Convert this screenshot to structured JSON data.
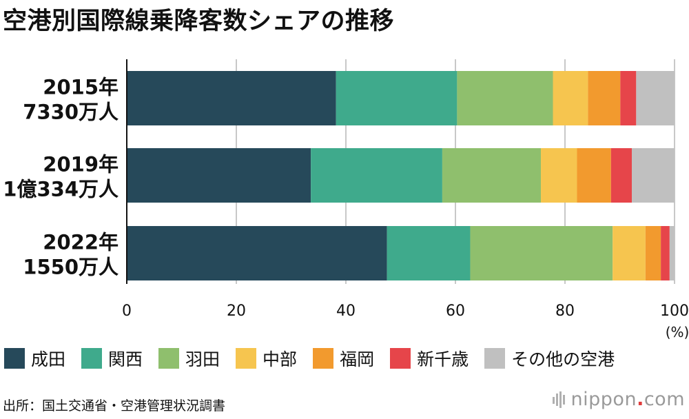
{
  "title": "空港別国際線乗降客数シェアの推移",
  "colors": {
    "成田": "#26495a",
    "関西": "#3faa8c",
    "羽田": "#8fbf6d",
    "中部": "#f6c54f",
    "福岡": "#f29a2e",
    "新千歳": "#e6454a",
    "その他の空港": "#c0c0c0",
    "grid": "#c8c8c8",
    "axis": "#111111"
  },
  "chart_data": {
    "type": "bar",
    "orientation": "horizontal",
    "stacked": true,
    "categories": [
      {
        "year": "2015年",
        "total": "7330万人"
      },
      {
        "year": "2019年",
        "total": "1億334万人"
      },
      {
        "year": "2022年",
        "total": "1550万人"
      }
    ],
    "series": [
      {
        "name": "成田",
        "values": [
          38.2,
          33.6,
          47.5
        ]
      },
      {
        "name": "関西",
        "values": [
          22.1,
          24.0,
          15.2
        ]
      },
      {
        "name": "羽田",
        "values": [
          17.5,
          18.0,
          26.0
        ]
      },
      {
        "name": "中部",
        "values": [
          6.4,
          6.6,
          6.0
        ]
      },
      {
        "name": "福岡",
        "values": [
          5.9,
          6.2,
          2.8
        ]
      },
      {
        "name": "新千歳",
        "values": [
          2.9,
          3.8,
          1.6
        ]
      },
      {
        "name": "その他の空港",
        "values": [
          7.0,
          7.8,
          0.9
        ]
      }
    ],
    "xlim": [
      0,
      100
    ],
    "xticks": [
      0,
      20,
      40,
      60,
      80,
      100
    ],
    "xunit": "(%)",
    "grid": true,
    "legend_position": "bottom"
  },
  "source": "出所：国土交通省・空港管理状況調書",
  "logo": {
    "text": "nippon",
    "dot": ".",
    "suffix": "com"
  }
}
